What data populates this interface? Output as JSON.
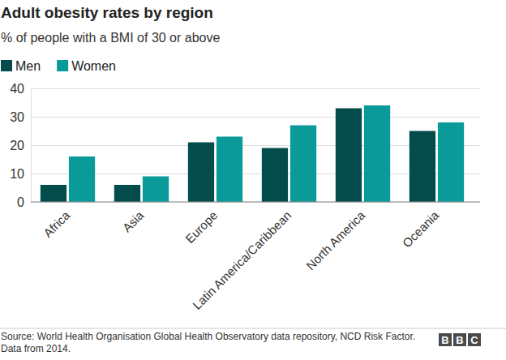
{
  "chart_data": {
    "type": "bar",
    "title": "Adult obesity rates by region",
    "subtitle": "% of people with a BMI of 30 or above",
    "categories": [
      "Africa",
      "Asia",
      "Europe",
      "Latin America/Caribbean",
      "North America",
      "Oceania"
    ],
    "series": [
      {
        "name": "Men",
        "color": "#044c4c",
        "values": [
          6,
          6,
          21,
          19,
          33,
          25
        ]
      },
      {
        "name": "Women",
        "color": "#0a9a9a",
        "values": [
          16,
          9,
          23,
          27,
          34,
          28
        ]
      }
    ],
    "ylim": [
      0,
      40
    ],
    "yticks": [
      0,
      10,
      20,
      30,
      40
    ],
    "grid": true,
    "legend": "top-left",
    "source": "Source: World Health Organisation Global Health Observatory data repository, NCD Risk Factor. Data from 2014.",
    "logo": [
      "B",
      "B",
      "C"
    ]
  }
}
